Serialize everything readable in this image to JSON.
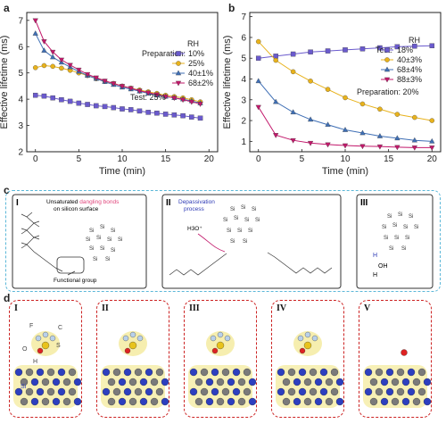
{
  "panels": {
    "a": {
      "letter": "a"
    },
    "b": {
      "letter": "b"
    },
    "c": {
      "letter": "c",
      "I": {
        "label": "I",
        "note1": "Unsaturated",
        "note_red": "dangling bonds",
        "note2": "on silicon surface",
        "caption": "Functional group"
      },
      "II": {
        "label": "II",
        "note": "Depassivation",
        "note2": "process",
        "h3o": "H3O⁺"
      },
      "III": {
        "label": "III",
        "oh": "OH",
        "h": "H"
      }
    },
    "d": {
      "letter": "d",
      "tiles": [
        "I",
        "II",
        "III",
        "IV",
        "V"
      ],
      "atom_labels": {
        "f": "F",
        "c": "C",
        "o": "O",
        "s": "S",
        "si": "Si",
        "h": "H"
      }
    }
  },
  "chart_data": [
    {
      "type": "line",
      "panel": "a",
      "xlabel": "Time (min)",
      "ylabel": "Effective lifetime (ms)",
      "xlim": [
        -1,
        21
      ],
      "ylim": [
        2,
        7.3
      ],
      "xticks": [
        0,
        5,
        10,
        15,
        20
      ],
      "yticks": [
        2,
        3,
        4,
        5,
        6,
        7
      ],
      "legend_title": "RH",
      "legend_heading": "Preparation:",
      "legend_placement": "top-right",
      "extra_note": "Test: 25%",
      "x": [
        0,
        1,
        2,
        3,
        4,
        5,
        6,
        7,
        8,
        9,
        10,
        11,
        12,
        13,
        14,
        15,
        16,
        17,
        18,
        19
      ],
      "series": [
        {
          "name": "10%",
          "color": "#6a5acd",
          "marker": "square",
          "values": [
            4.15,
            4.12,
            4.05,
            3.98,
            3.92,
            3.85,
            3.8,
            3.75,
            3.72,
            3.68,
            3.63,
            3.6,
            3.55,
            3.5,
            3.47,
            3.43,
            3.4,
            3.37,
            3.32,
            3.28
          ]
        },
        {
          "name": "25%",
          "color": "#e8b21c",
          "marker": "circle",
          "values": [
            5.2,
            5.28,
            5.25,
            5.18,
            5.1,
            5.0,
            4.9,
            4.78,
            4.68,
            4.6,
            4.5,
            4.42,
            4.35,
            4.28,
            4.22,
            4.15,
            4.1,
            4.05,
            3.98,
            3.9
          ]
        },
        {
          "name": "40±1%",
          "color": "#3f6fb5",
          "marker": "triangle",
          "values": [
            6.5,
            5.85,
            5.6,
            5.4,
            5.22,
            5.05,
            4.9,
            4.78,
            4.66,
            4.55,
            4.45,
            4.38,
            4.3,
            4.22,
            4.15,
            4.1,
            4.05,
            4.0,
            3.93,
            3.85
          ]
        },
        {
          "name": "68±2%",
          "color": "#c2186b",
          "marker": "triangle-down",
          "values": [
            7.0,
            6.2,
            5.8,
            5.5,
            5.3,
            5.12,
            4.95,
            4.82,
            4.7,
            4.6,
            4.5,
            4.42,
            4.32,
            4.25,
            4.18,
            4.1,
            4.05,
            3.98,
            3.9,
            3.82
          ]
        }
      ]
    },
    {
      "type": "line",
      "panel": "b",
      "xlabel": "Time (min)",
      "ylabel": "Effective lifetime (ms)",
      "xlim": [
        -1,
        21
      ],
      "ylim": [
        0.5,
        7.2
      ],
      "xticks": [
        0,
        5,
        10,
        15,
        20
      ],
      "yticks": [
        1,
        2,
        3,
        4,
        5,
        6,
        7
      ],
      "legend_title": "RH",
      "legend_heading": "Test:",
      "legend_placement": "center-right",
      "extra_note": "Preparation: 20%",
      "x": [
        0,
        2,
        4,
        6,
        8,
        10,
        12,
        14,
        16,
        18,
        20
      ],
      "series": [
        {
          "name": "18%",
          "color": "#6a5acd",
          "marker": "square",
          "values": [
            5.0,
            5.1,
            5.2,
            5.3,
            5.35,
            5.4,
            5.45,
            5.5,
            5.55,
            5.58,
            5.6
          ]
        },
        {
          "name": "40±3%",
          "color": "#e8b21c",
          "marker": "circle",
          "values": [
            5.8,
            4.9,
            4.35,
            3.9,
            3.5,
            3.1,
            2.8,
            2.55,
            2.3,
            2.15,
            2.0
          ]
        },
        {
          "name": "68±4%",
          "color": "#3f6fb5",
          "marker": "triangle",
          "values": [
            3.9,
            2.9,
            2.4,
            2.05,
            1.8,
            1.55,
            1.4,
            1.25,
            1.15,
            1.05,
            1.0
          ]
        },
        {
          "name": "88±3%",
          "color": "#c2186b",
          "marker": "triangle-down",
          "values": [
            2.65,
            1.3,
            1.05,
            0.92,
            0.85,
            0.8,
            0.77,
            0.75,
            0.72,
            0.7,
            0.7
          ]
        }
      ]
    }
  ]
}
